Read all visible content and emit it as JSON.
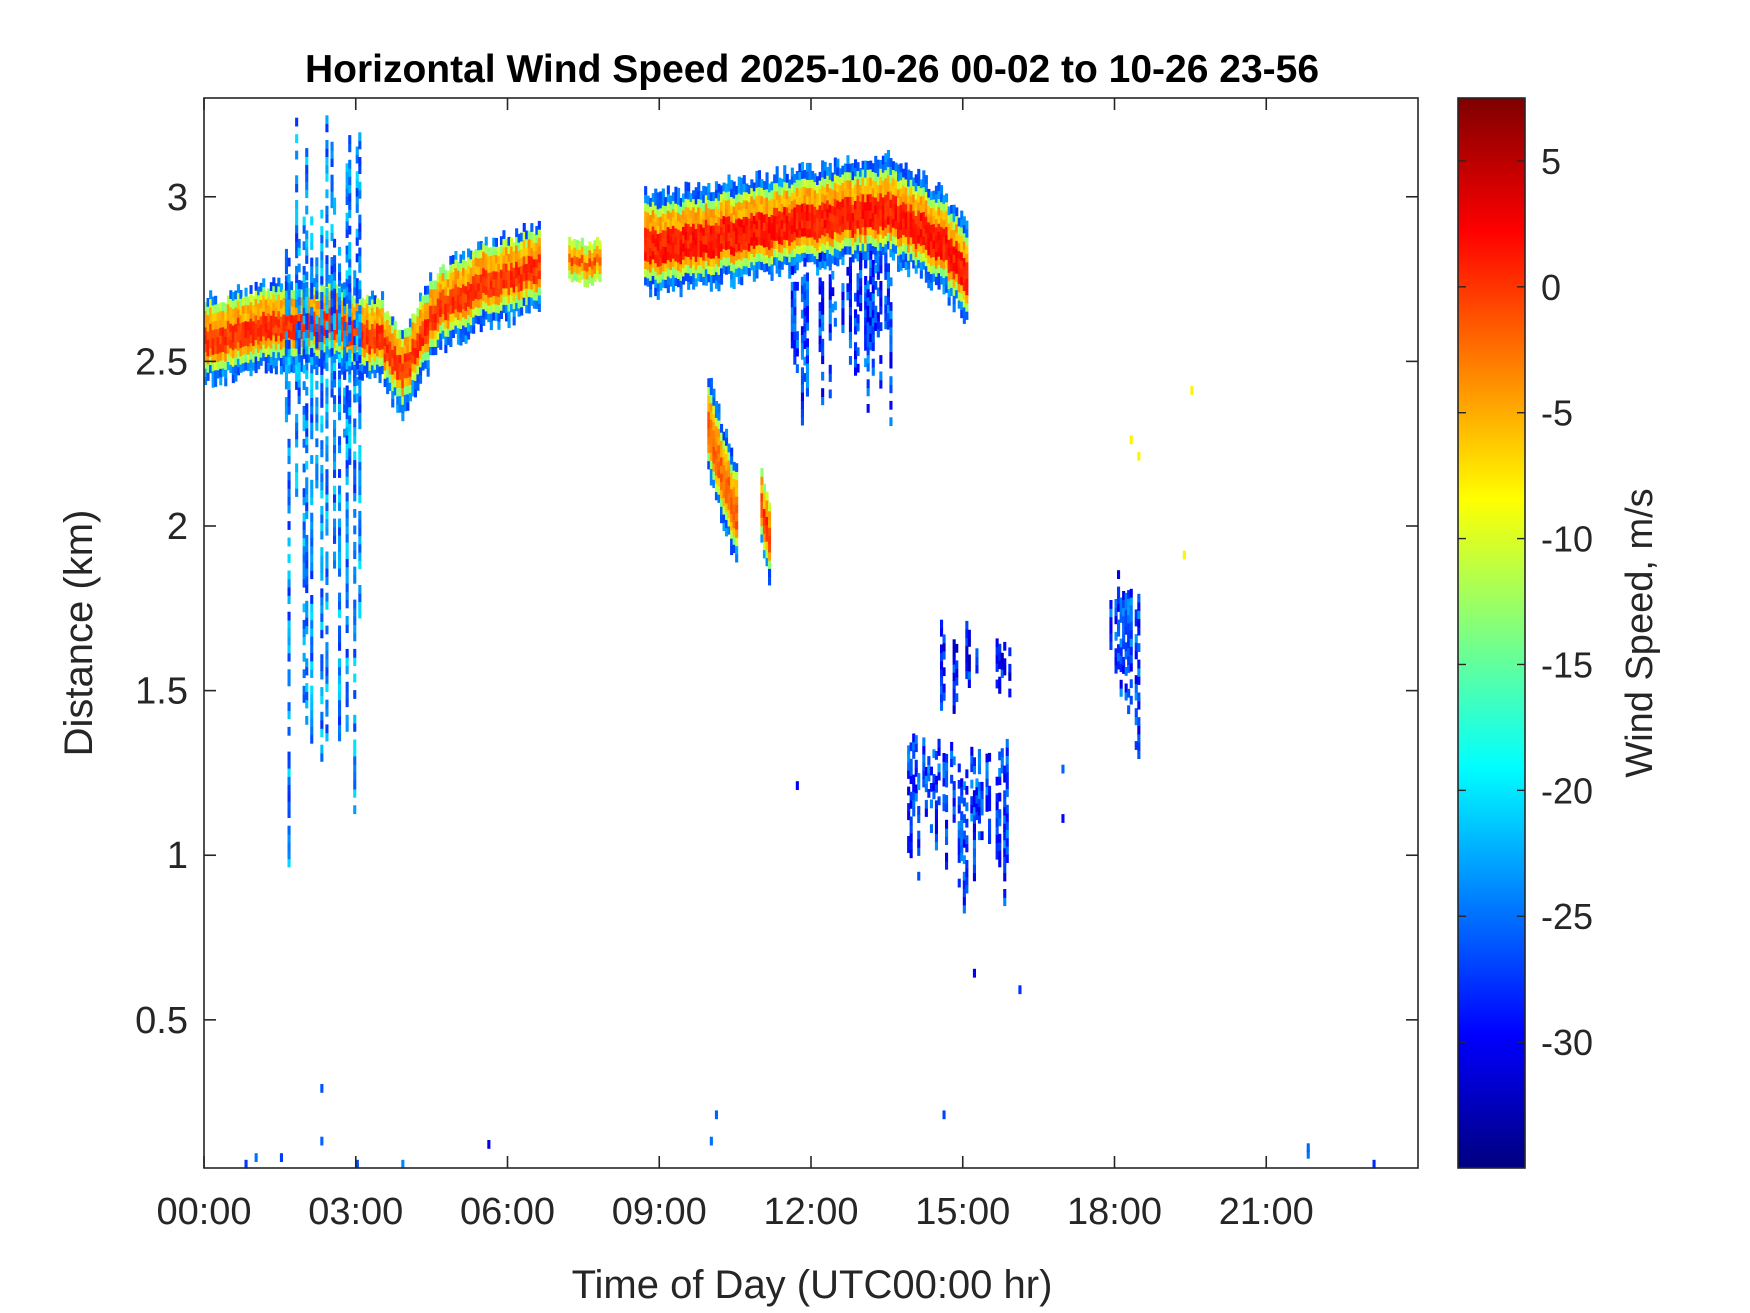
{
  "chart_data": {
    "type": "heatmap",
    "title": "Horizontal Wind Speed 2025-10-26 00-02 to 10-26 23-56",
    "xlabel": "Time of Day (UTC00:00 hr)",
    "ylabel": "Distance (km)",
    "colorbar_label": "Wind Speed, m/s",
    "xlim": [
      0,
      24
    ],
    "ylim": [
      0.05,
      3.3
    ],
    "clim": [
      -35,
      7.5
    ],
    "x_ticks": [
      0,
      3,
      6,
      9,
      12,
      15,
      18,
      21
    ],
    "x_tick_labels": [
      "00:00",
      "03:00",
      "06:00",
      "09:00",
      "12:00",
      "15:00",
      "18:00",
      "21:00"
    ],
    "y_ticks": [
      0.5,
      1,
      1.5,
      2,
      2.5,
      3
    ],
    "y_tick_labels": [
      "0.5",
      "1",
      "1.5",
      "2",
      "2.5",
      "3"
    ],
    "colorbar_ticks": [
      5,
      0,
      -5,
      -10,
      -15,
      -20,
      -25,
      -30
    ],
    "colorbar_tick_labels": [
      "5",
      "0",
      "-5",
      "-10",
      "-15",
      "-20",
      "-25",
      "-30"
    ],
    "colormap": "jet",
    "colormap_stops": [
      "#00007f",
      "#0000ff",
      "#007fff",
      "#00ffff",
      "#7fff7f",
      "#ffff00",
      "#ff7f00",
      "#ff0000",
      "#7f0000"
    ],
    "grid": false,
    "layers": [
      {
        "name": "upper-layer",
        "x0": 0.0,
        "x1": 6.6,
        "y": [
          [
            0.0,
            2.55
          ],
          [
            1.5,
            2.6
          ],
          [
            2.5,
            2.6
          ],
          [
            3.5,
            2.55
          ],
          [
            3.9,
            2.45
          ],
          [
            4.6,
            2.65
          ],
          [
            5.5,
            2.72
          ],
          [
            6.6,
            2.77
          ]
        ],
        "thickness": 0.1,
        "value": 0
      },
      {
        "name": "upper-layer-2",
        "x0": 7.2,
        "x1": 7.8,
        "y": [
          [
            7.2,
            2.79
          ],
          [
            7.8,
            2.79
          ]
        ],
        "thickness": 0.05,
        "value": -1
      },
      {
        "name": "upper-layer-3",
        "x0": 8.7,
        "x1": 15.1,
        "y": [
          [
            8.7,
            2.84
          ],
          [
            10.5,
            2.88
          ],
          [
            12.0,
            2.92
          ],
          [
            13.5,
            2.95
          ],
          [
            14.6,
            2.85
          ],
          [
            15.1,
            2.75
          ]
        ],
        "thickness": 0.12,
        "value": 1
      },
      {
        "name": "slant-feature",
        "x0": 9.95,
        "x1": 10.55,
        "y": [
          [
            9.95,
            2.28
          ],
          [
            10.55,
            2.0
          ]
        ],
        "thickness": 0.12,
        "value": -2
      },
      {
        "name": "slant-feature-2",
        "x0": 11.0,
        "x1": 11.2,
        "y": [
          [
            11.0,
            2.05
          ],
          [
            11.2,
            1.92
          ]
        ],
        "thickness": 0.1,
        "value": 0
      }
    ],
    "clusters": [
      {
        "name": "plume-03h",
        "x0": 1.6,
        "x1": 3.1,
        "y0": 1.35,
        "y1": 3.28,
        "value": -24
      },
      {
        "name": "virga-12h",
        "x0": 11.6,
        "x1": 13.6,
        "y0": 2.4,
        "y1": 2.85,
        "value": -27
      },
      {
        "name": "cluster-15h-upper",
        "x0": 14.4,
        "x1": 16.0,
        "y0": 1.42,
        "y1": 1.7,
        "value": -29
      },
      {
        "name": "cluster-15h-lower",
        "x0": 13.9,
        "x1": 15.9,
        "y0": 0.92,
        "y1": 1.35,
        "value": -27
      },
      {
        "name": "cluster-18h",
        "x0": 17.9,
        "x1": 18.6,
        "y0": 1.4,
        "y1": 1.9,
        "value": -27
      }
    ]
  }
}
